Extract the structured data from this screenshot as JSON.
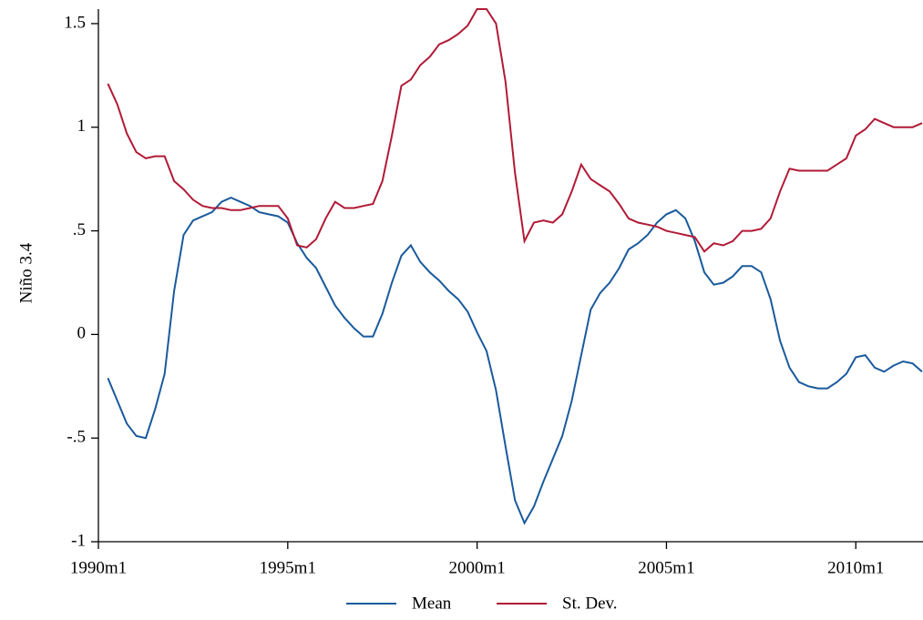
{
  "chart_data": {
    "type": "line",
    "y_label": "Niño 3.4",
    "x": [
      "1990m4",
      "1990m7",
      "1990m10",
      "1991m1",
      "1991m4",
      "1991m7",
      "1991m10",
      "1992m1",
      "1992m4",
      "1992m7",
      "1992m10",
      "1993m1",
      "1993m4",
      "1993m7",
      "1993m10",
      "1994m1",
      "1994m4",
      "1994m7",
      "1994m10",
      "1995m1",
      "1995m4",
      "1995m7",
      "1995m10",
      "1996m1",
      "1996m4",
      "1996m7",
      "1996m10",
      "1997m1",
      "1997m4",
      "1997m7",
      "1997m10",
      "1998m1",
      "1998m4",
      "1998m7",
      "1998m10",
      "1999m1",
      "1999m4",
      "1999m7",
      "1999m10",
      "2000m1",
      "2000m4",
      "2000m7",
      "2000m10",
      "2001m1",
      "2001m4",
      "2001m7",
      "2001m10",
      "2002m1",
      "2002m4",
      "2002m7",
      "2002m10",
      "2003m1",
      "2003m4",
      "2003m7",
      "2003m10",
      "2004m1",
      "2004m4",
      "2004m7",
      "2004m10",
      "2005m1",
      "2005m4",
      "2005m7",
      "2005m10",
      "2006m1",
      "2006m4",
      "2006m7",
      "2006m10",
      "2007m1",
      "2007m4",
      "2007m7",
      "2007m10",
      "2008m1",
      "2008m4",
      "2008m7",
      "2008m10",
      "2009m1",
      "2009m4",
      "2009m7",
      "2009m10",
      "2010m1",
      "2010m4",
      "2010m7",
      "2010m10",
      "2011m1",
      "2011m4",
      "2011m7",
      "2011m10"
    ],
    "series": [
      {
        "name": "Mean",
        "color": "#1a5a9c",
        "values": [
          -0.21,
          -0.32,
          -0.43,
          -0.49,
          -0.5,
          -0.36,
          -0.19,
          0.21,
          0.48,
          0.55,
          0.57,
          0.59,
          0.64,
          0.66,
          0.64,
          0.62,
          0.59,
          0.58,
          0.57,
          0.54,
          0.44,
          0.37,
          0.32,
          0.23,
          0.14,
          0.08,
          0.03,
          -0.01,
          -0.01,
          0.1,
          0.25,
          0.38,
          0.43,
          0.35,
          0.3,
          0.26,
          0.21,
          0.17,
          0.11,
          0.01,
          -0.08,
          -0.27,
          -0.54,
          -0.8,
          -0.91,
          -0.83,
          -0.71,
          -0.6,
          -0.49,
          -0.32,
          -0.1,
          0.12,
          0.2,
          0.25,
          0.32,
          0.41,
          0.44,
          0.48,
          0.54,
          0.58,
          0.6,
          0.56,
          0.45,
          0.3,
          0.24,
          0.25,
          0.28,
          0.33,
          0.33,
          0.3,
          0.17,
          -0.03,
          -0.16,
          -0.23,
          -0.25,
          -0.26,
          -0.26,
          -0.23,
          -0.19,
          -0.11,
          -0.1,
          -0.16,
          -0.18,
          -0.15,
          -0.13,
          -0.14,
          -0.18
        ]
      },
      {
        "name": "St. Dev.",
        "color": "#b11a36",
        "values": [
          1.21,
          1.11,
          0.97,
          0.88,
          0.85,
          0.86,
          0.86,
          0.74,
          0.7,
          0.65,
          0.62,
          0.61,
          0.61,
          0.6,
          0.6,
          0.61,
          0.62,
          0.62,
          0.62,
          0.56,
          0.43,
          0.42,
          0.46,
          0.56,
          0.64,
          0.61,
          0.61,
          0.62,
          0.63,
          0.74,
          0.96,
          1.2,
          1.23,
          1.3,
          1.34,
          1.4,
          1.42,
          1.45,
          1.49,
          1.57,
          1.57,
          1.5,
          1.22,
          0.78,
          0.45,
          0.54,
          0.55,
          0.54,
          0.58,
          0.69,
          0.82,
          0.75,
          0.72,
          0.69,
          0.63,
          0.56,
          0.54,
          0.53,
          0.52,
          0.5,
          0.49,
          0.48,
          0.47,
          0.4,
          0.44,
          0.43,
          0.45,
          0.5,
          0.5,
          0.51,
          0.56,
          0.69,
          0.8,
          0.79,
          0.79,
          0.79,
          0.79,
          0.82,
          0.85,
          0.96,
          0.99,
          1.04,
          1.02,
          1.0,
          1.0,
          1.0,
          1.02
        ]
      }
    ],
    "xlim": [
      "1990m1",
      "2011m10"
    ],
    "xticks": [
      "1990m1",
      "1995m1",
      "2000m1",
      "2005m1",
      "2010m1"
    ],
    "ylim": [
      -1,
      1.57
    ],
    "yticks": [
      -1,
      {
        "value": -0.5,
        "label": "-.5"
      },
      0,
      {
        "value": 0.5,
        "label": ".5"
      },
      1,
      1.5
    ],
    "legend": "bottom"
  }
}
